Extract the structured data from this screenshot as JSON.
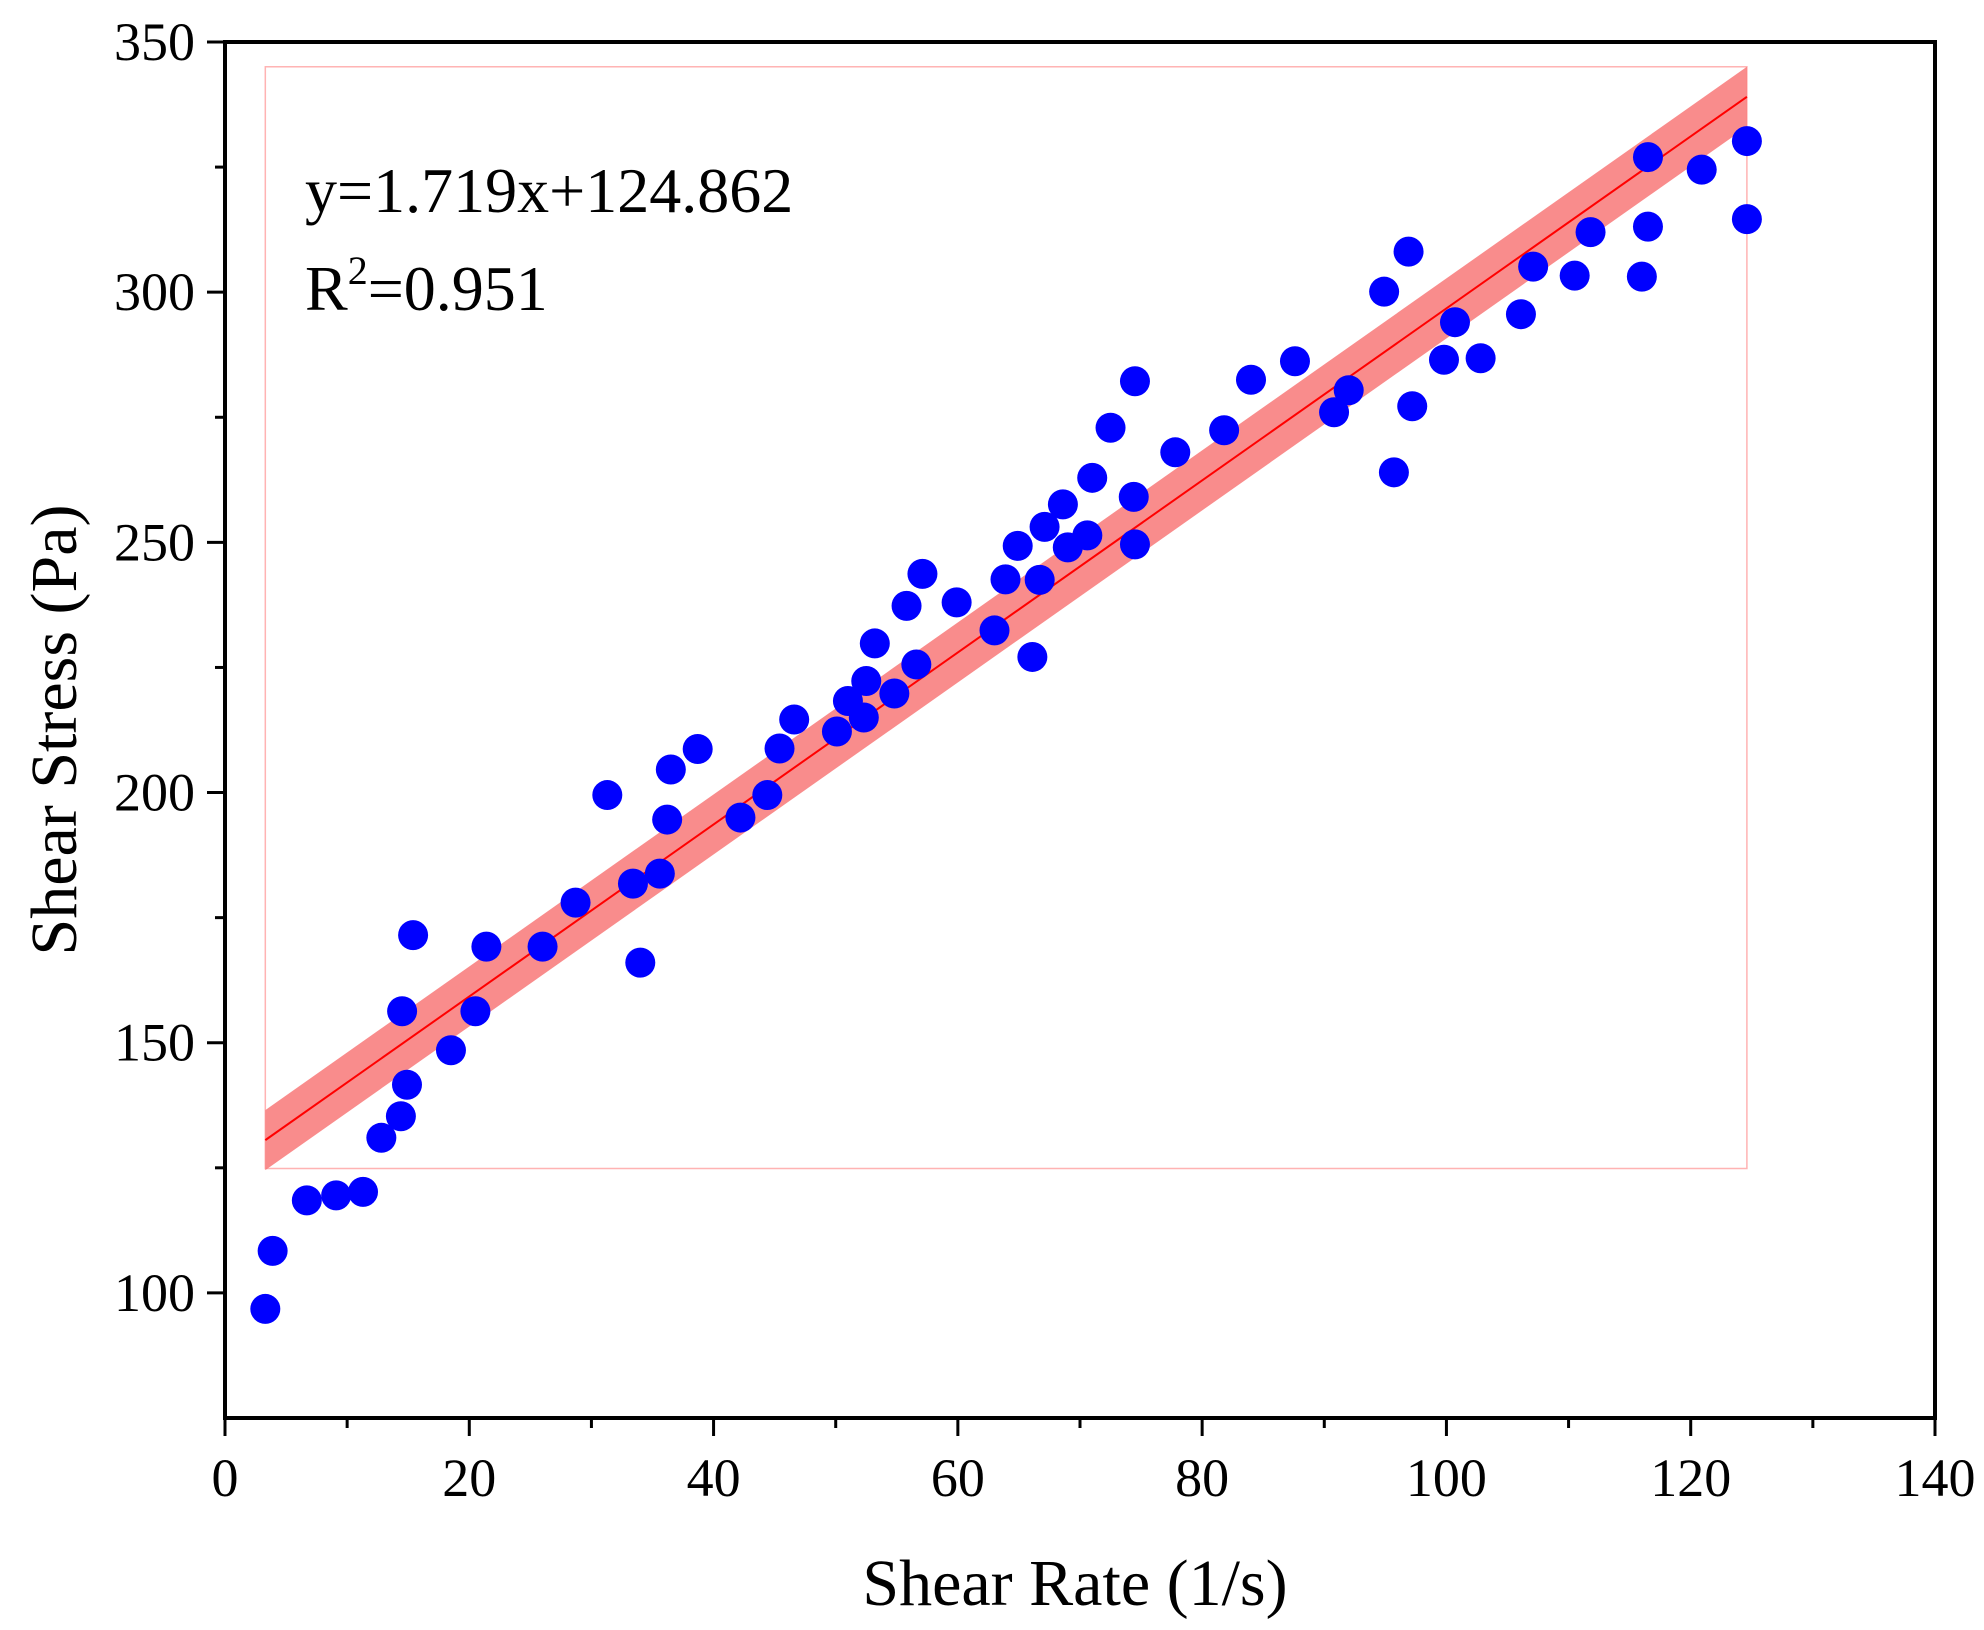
{
  "chart_data": {
    "type": "scatter",
    "title": "",
    "xlabel": "Shear Rate (1/s)",
    "ylabel": "Shear Stress (Pa)",
    "xlim": [
      0,
      140
    ],
    "ylim": [
      75,
      350
    ],
    "x_ticks": [
      0,
      20,
      40,
      60,
      80,
      100,
      120,
      140
    ],
    "y_ticks": [
      100,
      150,
      200,
      250,
      300,
      350
    ],
    "x_tick_labels": [
      "0",
      "20",
      "40",
      "60",
      "80",
      "100",
      "120",
      "140"
    ],
    "y_tick_labels": [
      "100",
      "150",
      "200",
      "250",
      "300",
      "350"
    ],
    "grid": false,
    "colors": {
      "points": "#0000ff",
      "fit_line": "#ff0000",
      "confidence_band": "#f87878",
      "band_outline": "#ffb3b3",
      "axis": "#000000"
    },
    "annotation": {
      "equation": "y=1.719x+124.862",
      "r2_prefix": "R",
      "r2_sup": "2",
      "r2_value": "=0.951"
    },
    "fit": {
      "slope": 1.719,
      "intercept": 124.862,
      "x_range": [
        3.3,
        124.6
      ],
      "band_halfwidth": 6
    },
    "series": [
      {
        "name": "data",
        "points": [
          [
            3.3,
            96.8
          ],
          [
            3.9,
            108.4
          ],
          [
            6.7,
            118.5
          ],
          [
            9.1,
            119.5
          ],
          [
            11.3,
            120.2
          ],
          [
            12.8,
            131.0
          ],
          [
            14.4,
            135.3
          ],
          [
            14.9,
            141.6
          ],
          [
            14.5,
            156.3
          ],
          [
            15.4,
            171.5
          ],
          [
            18.5,
            148.5
          ],
          [
            20.5,
            156.3
          ],
          [
            21.4,
            169.2
          ],
          [
            26.0,
            169.2
          ],
          [
            28.7,
            178.0
          ],
          [
            31.3,
            199.5
          ],
          [
            33.4,
            181.8
          ],
          [
            34.0,
            166.0
          ],
          [
            35.6,
            183.8
          ],
          [
            36.2,
            194.6
          ],
          [
            36.5,
            204.6
          ],
          [
            38.7,
            208.7
          ],
          [
            42.2,
            195.0
          ],
          [
            44.4,
            199.5
          ],
          [
            45.4,
            208.8
          ],
          [
            46.6,
            214.6
          ],
          [
            50.1,
            212.2
          ],
          [
            51.0,
            218.3
          ],
          [
            52.3,
            215.0
          ],
          [
            52.5,
            222.3
          ],
          [
            53.2,
            229.8
          ],
          [
            54.8,
            219.8
          ],
          [
            55.8,
            237.3
          ],
          [
            56.6,
            225.6
          ],
          [
            57.1,
            243.7
          ],
          [
            59.9,
            238.0
          ],
          [
            63.0,
            232.4
          ],
          [
            63.9,
            242.6
          ],
          [
            64.9,
            249.3
          ],
          [
            66.1,
            227.1
          ],
          [
            66.7,
            242.5
          ],
          [
            67.1,
            253.1
          ],
          [
            68.6,
            257.6
          ],
          [
            69.0,
            249.0
          ],
          [
            70.6,
            251.4
          ],
          [
            71.0,
            262.9
          ],
          [
            72.5,
            272.9
          ],
          [
            74.5,
            282.2
          ],
          [
            74.4,
            259.1
          ],
          [
            74.5,
            249.6
          ],
          [
            77.8,
            268.0
          ],
          [
            81.8,
            272.4
          ],
          [
            84.0,
            282.5
          ],
          [
            87.6,
            286.2
          ],
          [
            90.8,
            276.0
          ],
          [
            92.0,
            280.4
          ],
          [
            94.9,
            300.1
          ],
          [
            95.7,
            264.0
          ],
          [
            96.9,
            308.1
          ],
          [
            97.2,
            277.2
          ],
          [
            99.8,
            286.5
          ],
          [
            100.7,
            294.0
          ],
          [
            102.8,
            286.8
          ],
          [
            106.1,
            295.6
          ],
          [
            107.1,
            305.1
          ],
          [
            110.5,
            303.3
          ],
          [
            111.8,
            312.0
          ],
          [
            116.0,
            303.1
          ],
          [
            116.5,
            313.1
          ],
          [
            116.5,
            327.0
          ],
          [
            120.9,
            324.5
          ],
          [
            124.6,
            330.2
          ],
          [
            124.6,
            314.6
          ]
        ]
      }
    ]
  }
}
